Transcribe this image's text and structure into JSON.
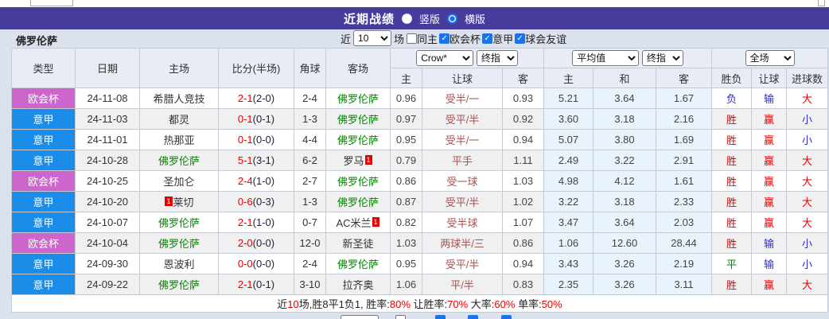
{
  "title_bar": {
    "title": "近期战绩",
    "radios": [
      {
        "label": "竖版",
        "checked": false
      },
      {
        "label": "横版",
        "checked": true
      }
    ]
  },
  "filter_bar": {
    "team": "佛罗伦萨",
    "recent_label": "近",
    "recent_value": "10",
    "matches_label": "场",
    "checkboxes": [
      {
        "label": "同主",
        "checked": false
      },
      {
        "label": "欧会杯",
        "checked": true
      },
      {
        "label": "意甲",
        "checked": true
      },
      {
        "label": "球会友谊",
        "checked": true
      }
    ]
  },
  "table": {
    "left_headers": [
      "类型",
      "日期",
      "主场",
      "比分(半场)",
      "角球",
      "客场"
    ],
    "asian_selects": [
      "Crow*",
      "终指"
    ],
    "avg_selects": [
      "平均值",
      "终指"
    ],
    "full_select": "全场",
    "sub_headers": [
      "主",
      "让球",
      "客",
      "主",
      "和",
      "客",
      "胜负",
      "让球",
      "进球数"
    ],
    "rows": [
      {
        "league": "欧会杯",
        "league_color": "pink",
        "date": "24-11-08",
        "home": {
          "name": "希腊人竞技",
          "fio": false,
          "badge": ""
        },
        "score_full": "2-1",
        "score_half": "(2-0)",
        "corner": "2-4",
        "away": {
          "name": "佛罗伦萨",
          "fio": true,
          "badge": ""
        },
        "asian": {
          "home": "0.96",
          "line": "受半/一",
          "away": "0.93"
        },
        "euro": {
          "home": "5.21",
          "draw": "3.64",
          "away": "1.67"
        },
        "outcome": {
          "text": "负",
          "color": "blue"
        },
        "handicap": {
          "text": "输",
          "color": "blue"
        },
        "goals": {
          "text": "大",
          "color": "red"
        }
      },
      {
        "league": "意甲",
        "league_color": "blue",
        "date": "24-11-03",
        "home": {
          "name": "都灵",
          "fio": false,
          "badge": ""
        },
        "score_full": "0-1",
        "score_half": "(0-1)",
        "corner": "1-3",
        "away": {
          "name": "佛罗伦萨",
          "fio": true,
          "badge": ""
        },
        "asian": {
          "home": "0.97",
          "line": "受平/半",
          "away": "0.92"
        },
        "euro": {
          "home": "3.60",
          "draw": "3.18",
          "away": "2.16"
        },
        "outcome": {
          "text": "胜",
          "color": "red"
        },
        "handicap": {
          "text": "赢",
          "color": "red"
        },
        "goals": {
          "text": "小",
          "color": "blue"
        }
      },
      {
        "league": "意甲",
        "league_color": "blue",
        "date": "24-11-01",
        "home": {
          "name": "热那亚",
          "fio": false,
          "badge": ""
        },
        "score_full": "0-1",
        "score_half": "(0-0)",
        "corner": "4-4",
        "away": {
          "name": "佛罗伦萨",
          "fio": true,
          "badge": ""
        },
        "asian": {
          "home": "0.95",
          "line": "受半/一",
          "away": "0.94"
        },
        "euro": {
          "home": "5.07",
          "draw": "3.80",
          "away": "1.69"
        },
        "outcome": {
          "text": "胜",
          "color": "red"
        },
        "handicap": {
          "text": "赢",
          "color": "red"
        },
        "goals": {
          "text": "小",
          "color": "blue"
        }
      },
      {
        "league": "意甲",
        "league_color": "blue",
        "date": "24-10-28",
        "home": {
          "name": "佛罗伦萨",
          "fio": true,
          "badge": ""
        },
        "score_full": "5-1",
        "score_half": "(3-1)",
        "corner": "6-2",
        "away": {
          "name": "罗马",
          "fio": false,
          "badge": "1",
          "badge_pos": "after"
        },
        "asian": {
          "home": "0.79",
          "line": "平手",
          "away": "1.11"
        },
        "euro": {
          "home": "2.49",
          "draw": "3.22",
          "away": "2.91"
        },
        "outcome": {
          "text": "胜",
          "color": "red"
        },
        "handicap": {
          "text": "赢",
          "color": "red"
        },
        "goals": {
          "text": "大",
          "color": "red"
        }
      },
      {
        "league": "欧会杯",
        "league_color": "pink",
        "date": "24-10-25",
        "home": {
          "name": "圣加仑",
          "fio": false,
          "badge": ""
        },
        "score_full": "2-4",
        "score_half": "(1-0)",
        "corner": "2-7",
        "away": {
          "name": "佛罗伦萨",
          "fio": true,
          "badge": ""
        },
        "asian": {
          "home": "0.86",
          "line": "受一球",
          "away": "1.03"
        },
        "euro": {
          "home": "4.98",
          "draw": "4.12",
          "away": "1.61"
        },
        "outcome": {
          "text": "胜",
          "color": "red"
        },
        "handicap": {
          "text": "赢",
          "color": "red"
        },
        "goals": {
          "text": "大",
          "color": "red"
        }
      },
      {
        "league": "意甲",
        "league_color": "blue",
        "date": "24-10-20",
        "home": {
          "name": "莱切",
          "fio": false,
          "badge": "1",
          "badge_pos": "before"
        },
        "score_full": "0-6",
        "score_half": "(0-3)",
        "corner": "1-3",
        "away": {
          "name": "佛罗伦萨",
          "fio": true,
          "badge": ""
        },
        "asian": {
          "home": "0.87",
          "line": "受平/半",
          "away": "1.02"
        },
        "euro": {
          "home": "3.22",
          "draw": "3.18",
          "away": "2.33"
        },
        "outcome": {
          "text": "胜",
          "color": "red"
        },
        "handicap": {
          "text": "赢",
          "color": "red"
        },
        "goals": {
          "text": "大",
          "color": "red"
        }
      },
      {
        "league": "意甲",
        "league_color": "blue",
        "date": "24-10-07",
        "home": {
          "name": "佛罗伦萨",
          "fio": true,
          "badge": ""
        },
        "score_full": "2-1",
        "score_half": "(1-0)",
        "corner": "0-7",
        "away": {
          "name": "AC米兰",
          "fio": false,
          "badge": "1",
          "badge_pos": "after"
        },
        "asian": {
          "home": "0.82",
          "line": "受半球",
          "away": "1.07"
        },
        "euro": {
          "home": "3.47",
          "draw": "3.64",
          "away": "2.03"
        },
        "outcome": {
          "text": "胜",
          "color": "red"
        },
        "handicap": {
          "text": "赢",
          "color": "red"
        },
        "goals": {
          "text": "大",
          "color": "red"
        }
      },
      {
        "league": "欧会杯",
        "league_color": "pink",
        "date": "24-10-04",
        "home": {
          "name": "佛罗伦萨",
          "fio": true,
          "badge": ""
        },
        "score_full": "2-0",
        "score_half": "(0-0)",
        "corner": "12-0",
        "away": {
          "name": "新圣徒",
          "fio": false,
          "badge": ""
        },
        "asian": {
          "home": "1.03",
          "line": "两球半/三",
          "away": "0.86"
        },
        "euro": {
          "home": "1.06",
          "draw": "12.60",
          "away": "28.44"
        },
        "outcome": {
          "text": "胜",
          "color": "red"
        },
        "handicap": {
          "text": "输",
          "color": "blue"
        },
        "goals": {
          "text": "小",
          "color": "blue"
        }
      },
      {
        "league": "意甲",
        "league_color": "blue",
        "date": "24-09-30",
        "home": {
          "name": "恩波利",
          "fio": false,
          "badge": ""
        },
        "score_full": "0-0",
        "score_half": "(0-0)",
        "corner": "2-4",
        "away": {
          "name": "佛罗伦萨",
          "fio": true,
          "badge": ""
        },
        "asian": {
          "home": "0.95",
          "line": "受平/半",
          "away": "0.94"
        },
        "euro": {
          "home": "3.43",
          "draw": "3.26",
          "away": "2.19"
        },
        "outcome": {
          "text": "平",
          "color": "green"
        },
        "handicap": {
          "text": "输",
          "color": "blue"
        },
        "goals": {
          "text": "小",
          "color": "blue"
        }
      },
      {
        "league": "意甲",
        "league_color": "blue",
        "date": "24-09-22",
        "home": {
          "name": "佛罗伦萨",
          "fio": true,
          "badge": ""
        },
        "score_full": "2-1",
        "score_half": "(0-1)",
        "corner": "3-10",
        "away": {
          "name": "拉齐奥",
          "fio": false,
          "badge": ""
        },
        "asian": {
          "home": "1.06",
          "line": "平/半",
          "away": "0.83"
        },
        "euro": {
          "home": "2.35",
          "draw": "3.26",
          "away": "3.11"
        },
        "outcome": {
          "text": "胜",
          "color": "red"
        },
        "handicap": {
          "text": "赢",
          "color": "red"
        },
        "goals": {
          "text": "大",
          "color": "red"
        }
      }
    ]
  },
  "summary": {
    "segments": [
      {
        "text": "近",
        "color": "dark"
      },
      {
        "text": "10",
        "color": "red"
      },
      {
        "text": "场,胜8平1负1, 胜率:",
        "color": "dark"
      },
      {
        "text": "80%",
        "color": "red"
      },
      {
        "text": " 让胜率:",
        "color": "dark"
      },
      {
        "text": "70%",
        "color": "red"
      },
      {
        "text": " 大率:",
        "color": "dark"
      },
      {
        "text": "60%",
        "color": "red"
      },
      {
        "text": " 单率:",
        "color": "dark"
      },
      {
        "text": "50%",
        "color": "red"
      }
    ]
  },
  "colors": {
    "accent_purple": "#453c9c",
    "league_pink": "#cc66cc",
    "league_blue": "#1b8ce8",
    "team_green": "#008800",
    "score_red": "#e60000",
    "result_blue": "#2a2ad2",
    "checkbox_blue": "#1a73e8"
  }
}
